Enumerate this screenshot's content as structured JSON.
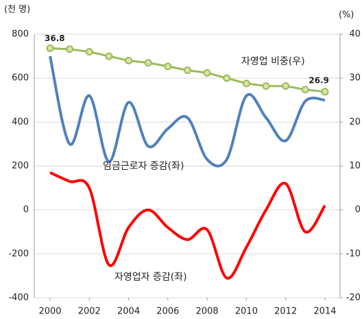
{
  "chart_data": {
    "type": "line",
    "y_label": "(천 명)",
    "y2_label": "(%)",
    "x": [
      2000,
      2001,
      2002,
      2003,
      2004,
      2005,
      2006,
      2007,
      2008,
      2009,
      2010,
      2011,
      2012,
      2013,
      2014
    ],
    "xlim": [
      2000,
      2014
    ],
    "xticks": [
      2000,
      2002,
      2004,
      2006,
      2008,
      2010,
      2012,
      2014
    ],
    "ylim": [
      -400,
      800
    ],
    "yticks": [
      -400,
      -200,
      0,
      200,
      400,
      600,
      800
    ],
    "y2lim": [
      -20,
      40
    ],
    "y2ticks": [
      -20,
      -10,
      0,
      10,
      20,
      30,
      40
    ],
    "grid": true,
    "series": [
      {
        "name": "임금근로자 증감(좌)",
        "color": "#4f81bd",
        "smooth": true,
        "values": [
          700,
          300,
          520,
          220,
          490,
          290,
          370,
          420,
          230,
          230,
          520,
          420,
          315,
          495,
          500
        ]
      },
      {
        "name": "자영업자 증감(좌)",
        "color": "#ff0000",
        "smooth": true,
        "values": [
          170,
          130,
          100,
          -250,
          -80,
          0,
          -80,
          -135,
          -90,
          -310,
          -170,
          0,
          120,
          -100,
          20
        ]
      },
      {
        "name": "자영업 비중(우)",
        "color": "#9bbb59",
        "axis": "y2",
        "markers": true,
        "values": [
          36.8,
          36.6,
          36.0,
          35.0,
          34.0,
          33.5,
          32.7,
          31.8,
          31.2,
          30.0,
          28.8,
          28.2,
          28.2,
          27.4,
          26.9
        ]
      }
    ]
  }
}
